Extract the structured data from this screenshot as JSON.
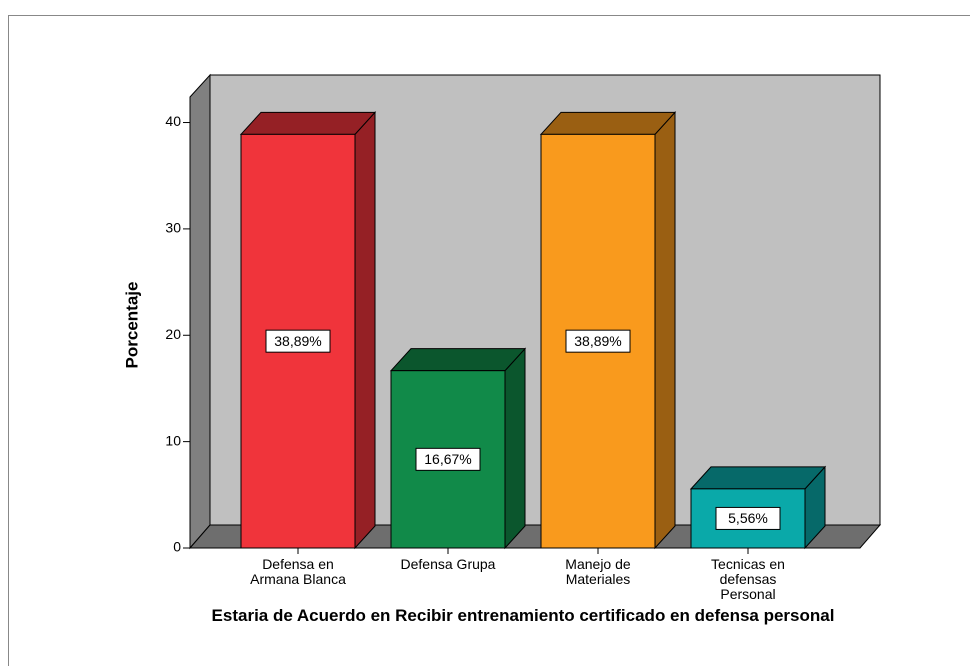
{
  "chart_data": {
    "type": "bar3d",
    "x_label": "Estaria de Acuerdo en Recibir entrenamiento certificado en defensa personal",
    "y_label": "Porcentaje",
    "categories": [
      "Defensa en Armana Blanca",
      "Defensa Grupa",
      "Manejo de Materiales",
      "Tecnicas en defensas Personal"
    ],
    "values": [
      38.89,
      16.67,
      38.89,
      5.56
    ],
    "value_labels": [
      "38,89%",
      "16,67%",
      "38,89%",
      "5,56%"
    ],
    "colors": [
      "#f0343b",
      "#118a49",
      "#f99a1d",
      "#0aa9a9"
    ],
    "ylim": [
      0,
      42.4
    ],
    "yticks": [
      0,
      10,
      20,
      30,
      40
    ]
  }
}
